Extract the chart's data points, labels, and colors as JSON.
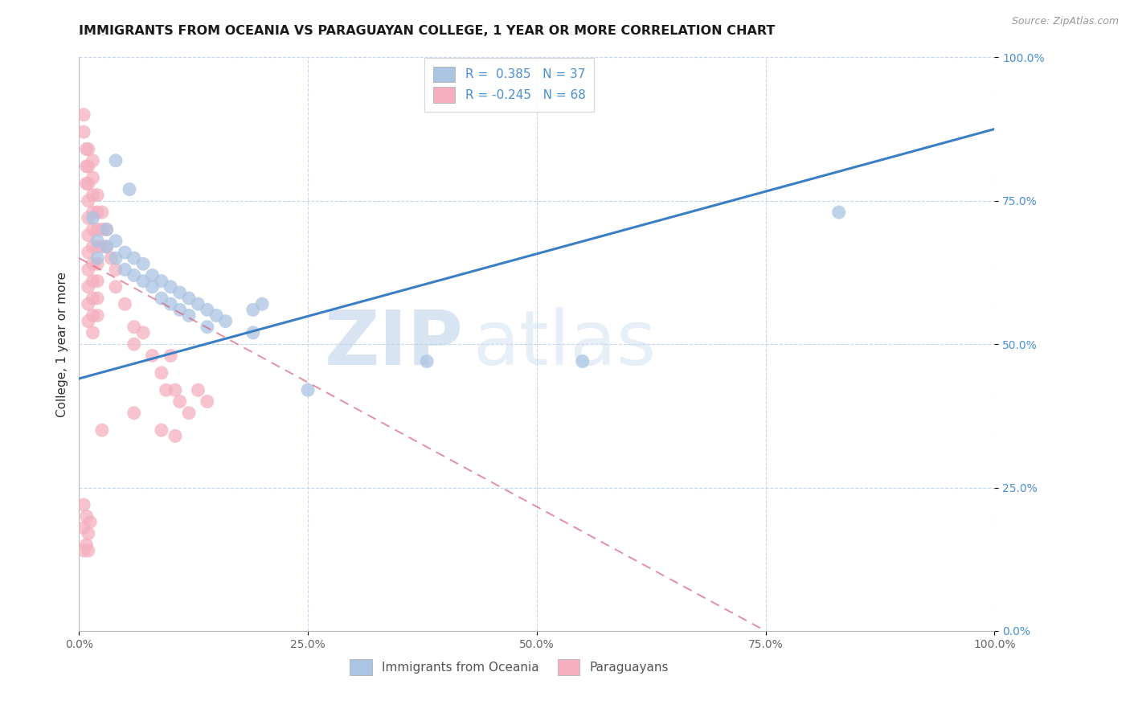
{
  "title": "IMMIGRANTS FROM OCEANIA VS PARAGUAYAN COLLEGE, 1 YEAR OR MORE CORRELATION CHART",
  "source_text": "Source: ZipAtlas.com",
  "ylabel": "College, 1 year or more",
  "xlim": [
    0.0,
    1.0
  ],
  "ylim": [
    0.0,
    1.0
  ],
  "xticks": [
    0.0,
    0.25,
    0.5,
    0.75,
    1.0
  ],
  "yticks": [
    0.0,
    0.25,
    0.5,
    0.75,
    1.0
  ],
  "xtick_labels": [
    "0.0%",
    "25.0%",
    "50.0%",
    "75.0%",
    "100.0%"
  ],
  "ytick_labels": [
    "0.0%",
    "25.0%",
    "50.0%",
    "75.0%",
    "100.0%"
  ],
  "legend_r1": "R =  0.385",
  "legend_n1": "N = 37",
  "legend_r2": "R = -0.245",
  "legend_n2": "N = 68",
  "color_blue": "#aac4e2",
  "color_pink": "#f5afc0",
  "color_blue_text": "#4a8fd4",
  "trend_blue": "#3a7fc4",
  "trend_pink": "#d9607a",
  "watermark_zip": "ZIP",
  "watermark_atlas": "atlas",
  "scatter_blue": [
    [
      0.015,
      0.72
    ],
    [
      0.04,
      0.82
    ],
    [
      0.055,
      0.77
    ],
    [
      0.02,
      0.68
    ],
    [
      0.02,
      0.65
    ],
    [
      0.03,
      0.7
    ],
    [
      0.03,
      0.67
    ],
    [
      0.04,
      0.68
    ],
    [
      0.04,
      0.65
    ],
    [
      0.05,
      0.66
    ],
    [
      0.05,
      0.63
    ],
    [
      0.06,
      0.65
    ],
    [
      0.06,
      0.62
    ],
    [
      0.07,
      0.64
    ],
    [
      0.07,
      0.61
    ],
    [
      0.08,
      0.62
    ],
    [
      0.08,
      0.6
    ],
    [
      0.09,
      0.61
    ],
    [
      0.09,
      0.58
    ],
    [
      0.1,
      0.6
    ],
    [
      0.1,
      0.57
    ],
    [
      0.11,
      0.59
    ],
    [
      0.11,
      0.56
    ],
    [
      0.12,
      0.58
    ],
    [
      0.12,
      0.55
    ],
    [
      0.13,
      0.57
    ],
    [
      0.14,
      0.56
    ],
    [
      0.14,
      0.53
    ],
    [
      0.15,
      0.55
    ],
    [
      0.16,
      0.54
    ],
    [
      0.19,
      0.56
    ],
    [
      0.2,
      0.57
    ],
    [
      0.25,
      0.42
    ],
    [
      0.38,
      0.47
    ],
    [
      0.55,
      0.47
    ],
    [
      0.83,
      0.73
    ],
    [
      0.19,
      0.52
    ]
  ],
  "scatter_pink": [
    [
      0.005,
      0.9
    ],
    [
      0.005,
      0.87
    ],
    [
      0.008,
      0.84
    ],
    [
      0.008,
      0.81
    ],
    [
      0.008,
      0.78
    ],
    [
      0.01,
      0.84
    ],
    [
      0.01,
      0.81
    ],
    [
      0.01,
      0.78
    ],
    [
      0.01,
      0.75
    ],
    [
      0.01,
      0.72
    ],
    [
      0.01,
      0.69
    ],
    [
      0.01,
      0.66
    ],
    [
      0.01,
      0.63
    ],
    [
      0.01,
      0.6
    ],
    [
      0.01,
      0.57
    ],
    [
      0.01,
      0.54
    ],
    [
      0.015,
      0.82
    ],
    [
      0.015,
      0.79
    ],
    [
      0.015,
      0.76
    ],
    [
      0.015,
      0.73
    ],
    [
      0.015,
      0.7
    ],
    [
      0.015,
      0.67
    ],
    [
      0.015,
      0.64
    ],
    [
      0.015,
      0.61
    ],
    [
      0.015,
      0.58
    ],
    [
      0.015,
      0.55
    ],
    [
      0.015,
      0.52
    ],
    [
      0.02,
      0.76
    ],
    [
      0.02,
      0.73
    ],
    [
      0.02,
      0.7
    ],
    [
      0.02,
      0.67
    ],
    [
      0.02,
      0.64
    ],
    [
      0.02,
      0.61
    ],
    [
      0.02,
      0.58
    ],
    [
      0.02,
      0.55
    ],
    [
      0.025,
      0.73
    ],
    [
      0.025,
      0.7
    ],
    [
      0.025,
      0.67
    ],
    [
      0.03,
      0.7
    ],
    [
      0.03,
      0.67
    ],
    [
      0.035,
      0.65
    ],
    [
      0.04,
      0.63
    ],
    [
      0.04,
      0.6
    ],
    [
      0.05,
      0.57
    ],
    [
      0.06,
      0.53
    ],
    [
      0.06,
      0.5
    ],
    [
      0.07,
      0.52
    ],
    [
      0.08,
      0.48
    ],
    [
      0.09,
      0.45
    ],
    [
      0.095,
      0.42
    ],
    [
      0.1,
      0.48
    ],
    [
      0.105,
      0.42
    ],
    [
      0.11,
      0.4
    ],
    [
      0.12,
      0.38
    ],
    [
      0.13,
      0.42
    ],
    [
      0.14,
      0.4
    ],
    [
      0.09,
      0.35
    ],
    [
      0.105,
      0.34
    ],
    [
      0.008,
      0.2
    ],
    [
      0.01,
      0.17
    ],
    [
      0.01,
      0.14
    ],
    [
      0.012,
      0.19
    ],
    [
      0.008,
      0.15
    ],
    [
      0.005,
      0.22
    ],
    [
      0.005,
      0.18
    ],
    [
      0.005,
      0.14
    ],
    [
      0.06,
      0.38
    ],
    [
      0.025,
      0.35
    ]
  ],
  "blue_trend_x": [
    0.0,
    1.0
  ],
  "blue_trend_y": [
    0.44,
    0.875
  ],
  "pink_trend_x": [
    0.0,
    0.75
  ],
  "pink_trend_y": [
    0.65,
    0.0
  ],
  "grid_color": "#c5d8ea",
  "background_color": "#ffffff",
  "title_fontsize": 11.5,
  "axis_label_fontsize": 11,
  "tick_fontsize": 10,
  "source_fontsize": 9
}
